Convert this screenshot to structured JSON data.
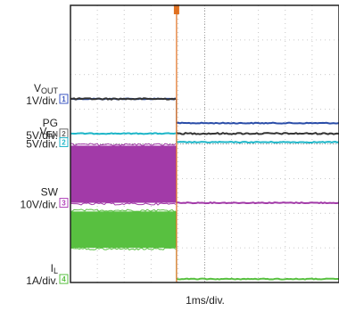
{
  "chart_data": {
    "type": "line",
    "title": "",
    "xlabel": "1ms/div.",
    "grid": true,
    "x_divisions": 10,
    "y_divisions": 8,
    "trigger_marker": {
      "color": "#e07020",
      "position_div": 3.95
    },
    "channels": [
      {
        "id": "1",
        "label_main": "V",
        "label_sub": "OUT",
        "scale": "1V/div.",
        "color": "#2a4da8",
        "marker_color": "#3a55c0",
        "marker_level_div": 5.3,
        "segments": [
          {
            "from_div": 0,
            "to_div": 3.95,
            "level_div": 5.3
          },
          {
            "from_div": 3.95,
            "to_div": 10,
            "level_div": 4.6
          }
        ],
        "noisy": false
      },
      {
        "id": "2",
        "label_main": "PG",
        "label_sub": "",
        "scale": "5V/div.",
        "color": "#333333",
        "marker_color": "#666666",
        "marker_level_div": 4.3,
        "segments": [
          {
            "from_div": 0,
            "to_div": 3.95,
            "level_div": 5.3
          },
          {
            "from_div": 3.95,
            "to_div": 10,
            "level_div": 4.3
          }
        ],
        "noisy": false
      },
      {
        "id": "2",
        "label_main": "V",
        "label_sub": "EN",
        "scale": "5V/div.",
        "color": "#1fb6c8",
        "marker_color": "#1fb6c8",
        "marker_level_div": 4.05,
        "segments": [
          {
            "from_div": 0,
            "to_div": 3.95,
            "level_div": 4.3
          },
          {
            "from_div": 3.95,
            "to_div": 10,
            "level_div": 4.05
          }
        ],
        "noisy": false
      },
      {
        "id": "3",
        "label_main": "SW",
        "label_sub": "",
        "scale": "10V/div.",
        "color": "#a23aa8",
        "marker_color": "#b040b8",
        "marker_level_div": 2.3,
        "segments": [
          {
            "from_div": 0,
            "to_div": 3.95,
            "level_div": 2.3
          },
          {
            "from_div": 3.95,
            "to_div": 10,
            "level_div": 2.3
          }
        ],
        "noisy": true,
        "switching_band_div": [
          2.3,
          3.95
        ],
        "switching_until_div": 3.95
      },
      {
        "id": "4",
        "label_main": "I",
        "label_sub": "L",
        "scale": "1A/div.",
        "color": "#58c040",
        "marker_color": "#58c040",
        "marker_level_div": 0.1,
        "segments": [
          {
            "from_div": 0,
            "to_div": 3.95,
            "level_div": 1.55
          },
          {
            "from_div": 3.95,
            "to_div": 10,
            "level_div": 0.1
          }
        ],
        "noisy": true,
        "switching_band_div": [
          1.0,
          2.05
        ],
        "switching_until_div": 3.95
      }
    ]
  }
}
